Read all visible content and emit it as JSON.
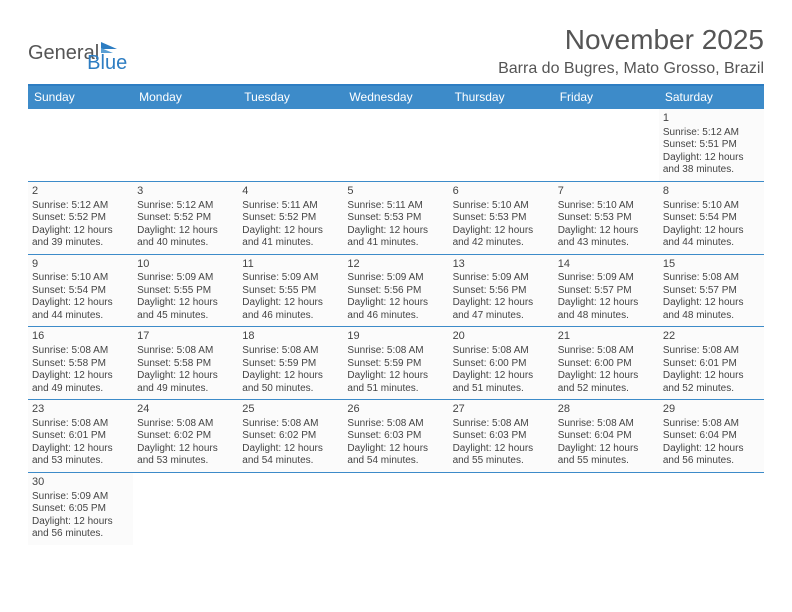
{
  "brand": {
    "part1": "General",
    "part2": "Blue"
  },
  "title": "November 2025",
  "location": "Barra do Bugres, Mato Grosso, Brazil",
  "colors": {
    "header_bg": "#3d8bc9",
    "accent": "#2d7dc2",
    "text": "#444444",
    "background": "#ffffff"
  },
  "dayNames": [
    "Sunday",
    "Monday",
    "Tuesday",
    "Wednesday",
    "Thursday",
    "Friday",
    "Saturday"
  ],
  "firstDayOffset": 6,
  "daysInMonth": 30,
  "days": [
    {
      "n": 1,
      "sunrise": "5:12 AM",
      "sunset": "5:51 PM",
      "daylight": "12 hours and 38 minutes."
    },
    {
      "n": 2,
      "sunrise": "5:12 AM",
      "sunset": "5:52 PM",
      "daylight": "12 hours and 39 minutes."
    },
    {
      "n": 3,
      "sunrise": "5:12 AM",
      "sunset": "5:52 PM",
      "daylight": "12 hours and 40 minutes."
    },
    {
      "n": 4,
      "sunrise": "5:11 AM",
      "sunset": "5:52 PM",
      "daylight": "12 hours and 41 minutes."
    },
    {
      "n": 5,
      "sunrise": "5:11 AM",
      "sunset": "5:53 PM",
      "daylight": "12 hours and 41 minutes."
    },
    {
      "n": 6,
      "sunrise": "5:10 AM",
      "sunset": "5:53 PM",
      "daylight": "12 hours and 42 minutes."
    },
    {
      "n": 7,
      "sunrise": "5:10 AM",
      "sunset": "5:53 PM",
      "daylight": "12 hours and 43 minutes."
    },
    {
      "n": 8,
      "sunrise": "5:10 AM",
      "sunset": "5:54 PM",
      "daylight": "12 hours and 44 minutes."
    },
    {
      "n": 9,
      "sunrise": "5:10 AM",
      "sunset": "5:54 PM",
      "daylight": "12 hours and 44 minutes."
    },
    {
      "n": 10,
      "sunrise": "5:09 AM",
      "sunset": "5:55 PM",
      "daylight": "12 hours and 45 minutes."
    },
    {
      "n": 11,
      "sunrise": "5:09 AM",
      "sunset": "5:55 PM",
      "daylight": "12 hours and 46 minutes."
    },
    {
      "n": 12,
      "sunrise": "5:09 AM",
      "sunset": "5:56 PM",
      "daylight": "12 hours and 46 minutes."
    },
    {
      "n": 13,
      "sunrise": "5:09 AM",
      "sunset": "5:56 PM",
      "daylight": "12 hours and 47 minutes."
    },
    {
      "n": 14,
      "sunrise": "5:09 AM",
      "sunset": "5:57 PM",
      "daylight": "12 hours and 48 minutes."
    },
    {
      "n": 15,
      "sunrise": "5:08 AM",
      "sunset": "5:57 PM",
      "daylight": "12 hours and 48 minutes."
    },
    {
      "n": 16,
      "sunrise": "5:08 AM",
      "sunset": "5:58 PM",
      "daylight": "12 hours and 49 minutes."
    },
    {
      "n": 17,
      "sunrise": "5:08 AM",
      "sunset": "5:58 PM",
      "daylight": "12 hours and 49 minutes."
    },
    {
      "n": 18,
      "sunrise": "5:08 AM",
      "sunset": "5:59 PM",
      "daylight": "12 hours and 50 minutes."
    },
    {
      "n": 19,
      "sunrise": "5:08 AM",
      "sunset": "5:59 PM",
      "daylight": "12 hours and 51 minutes."
    },
    {
      "n": 20,
      "sunrise": "5:08 AM",
      "sunset": "6:00 PM",
      "daylight": "12 hours and 51 minutes."
    },
    {
      "n": 21,
      "sunrise": "5:08 AM",
      "sunset": "6:00 PM",
      "daylight": "12 hours and 52 minutes."
    },
    {
      "n": 22,
      "sunrise": "5:08 AM",
      "sunset": "6:01 PM",
      "daylight": "12 hours and 52 minutes."
    },
    {
      "n": 23,
      "sunrise": "5:08 AM",
      "sunset": "6:01 PM",
      "daylight": "12 hours and 53 minutes."
    },
    {
      "n": 24,
      "sunrise": "5:08 AM",
      "sunset": "6:02 PM",
      "daylight": "12 hours and 53 minutes."
    },
    {
      "n": 25,
      "sunrise": "5:08 AM",
      "sunset": "6:02 PM",
      "daylight": "12 hours and 54 minutes."
    },
    {
      "n": 26,
      "sunrise": "5:08 AM",
      "sunset": "6:03 PM",
      "daylight": "12 hours and 54 minutes."
    },
    {
      "n": 27,
      "sunrise": "5:08 AM",
      "sunset": "6:03 PM",
      "daylight": "12 hours and 55 minutes."
    },
    {
      "n": 28,
      "sunrise": "5:08 AM",
      "sunset": "6:04 PM",
      "daylight": "12 hours and 55 minutes."
    },
    {
      "n": 29,
      "sunrise": "5:08 AM",
      "sunset": "6:04 PM",
      "daylight": "12 hours and 56 minutes."
    },
    {
      "n": 30,
      "sunrise": "5:09 AM",
      "sunset": "6:05 PM",
      "daylight": "12 hours and 56 minutes."
    }
  ],
  "labels": {
    "sunrise": "Sunrise:",
    "sunset": "Sunset:",
    "daylight": "Daylight:"
  },
  "typography": {
    "title_fontsize": 28,
    "location_fontsize": 16,
    "header_fontsize": 12,
    "cell_fontsize": 10
  }
}
